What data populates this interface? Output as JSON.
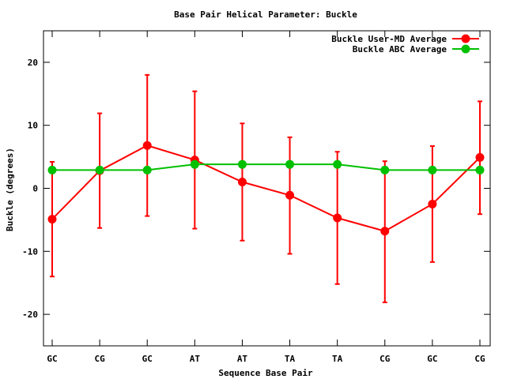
{
  "chart_data": {
    "type": "line",
    "title": "Base Pair Helical Parameter: Buckle",
    "xlabel": "Sequence Base Pair",
    "ylabel": "Buckle (degrees)",
    "categories": [
      "GC",
      "CG",
      "GC",
      "AT",
      "AT",
      "TA",
      "TA",
      "CG",
      "GC",
      "CG"
    ],
    "ylim": [
      -25,
      25
    ],
    "yticks": [
      -20,
      -10,
      0,
      10,
      20
    ],
    "ytick_labels": [
      "-20",
      "-10",
      "0",
      "10",
      "20"
    ],
    "legend_position": "top-right",
    "grid": false,
    "series": [
      {
        "name": "Buckle User-MD Average",
        "color": "#ff0000",
        "values": [
          -4.9,
          2.8,
          6.8,
          4.5,
          1.0,
          -1.1,
          -4.7,
          -6.8,
          -2.5,
          4.9
        ],
        "error_low": [
          -14.0,
          -6.3,
          -4.4,
          -6.4,
          -8.3,
          -10.4,
          -15.2,
          -18.1,
          -11.7,
          -4.1
        ],
        "error_high": [
          4.2,
          11.9,
          18.0,
          15.4,
          10.3,
          8.1,
          5.8,
          4.3,
          6.7,
          13.8
        ]
      },
      {
        "name": "Buckle ABC Average",
        "color": "#00c000",
        "values": [
          2.9,
          2.9,
          2.9,
          3.8,
          3.8,
          3.8,
          3.8,
          2.9,
          2.9,
          2.9
        ]
      }
    ]
  }
}
